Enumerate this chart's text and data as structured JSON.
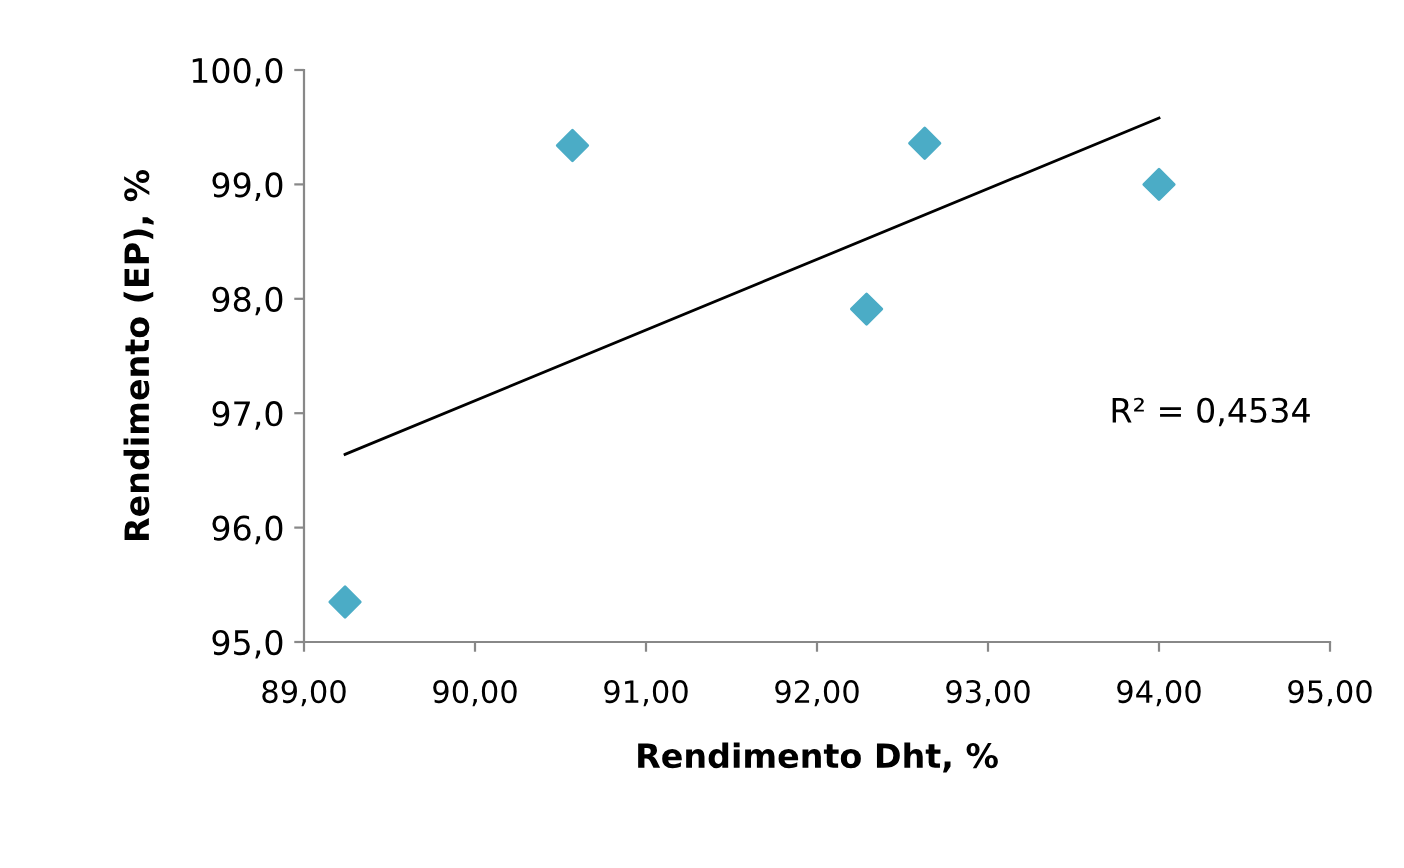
{
  "chart_data": {
    "type": "scatter",
    "xlabel": "Rendimento Dht, %",
    "ylabel": "Rendimento (EP), %",
    "xlim": [
      89,
      95
    ],
    "xticks": [
      {
        "value": 89,
        "label": "89,00"
      },
      {
        "value": 90,
        "label": "90,00"
      },
      {
        "value": 91,
        "label": "91,00"
      },
      {
        "value": 92,
        "label": "92,00"
      },
      {
        "value": 93,
        "label": "93,00"
      },
      {
        "value": 94,
        "label": "94,00"
      },
      {
        "value": 95,
        "label": "95,00"
      }
    ],
    "ylim": [
      95,
      100
    ],
    "yticks": [
      {
        "value": 95,
        "label": "95,0"
      },
      {
        "value": 96,
        "label": "96,0"
      },
      {
        "value": 97,
        "label": "97,0"
      },
      {
        "value": 98,
        "label": "98,0"
      },
      {
        "value": 99,
        "label": "99,0"
      },
      {
        "value": 100,
        "label": "100,0"
      }
    ],
    "grid": false,
    "legend": false,
    "series": [
      {
        "marker": "diamond",
        "color": "#4bacc6",
        "x": [
          89.24,
          90.57,
          92.29,
          92.63,
          94.0
        ],
        "values": [
          95.35,
          99.34,
          97.91,
          99.36,
          99.0
        ]
      },
      {
        "type": "line",
        "color": "#000000",
        "x": [
          89.24,
          94.0
        ],
        "values": [
          96.64,
          99.58
        ]
      }
    ],
    "annotations": [
      "R² = 0,4534"
    ]
  }
}
